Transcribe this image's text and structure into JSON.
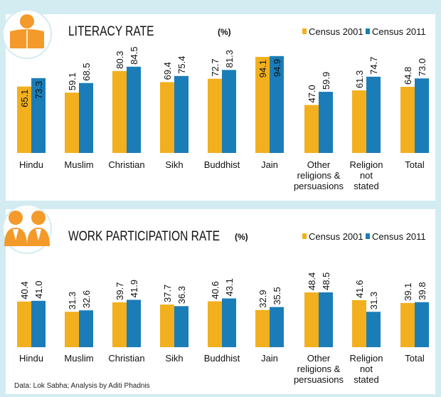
{
  "colors": {
    "census_2001": "#f2b01e",
    "census_2011": "#1b7db8",
    "icon": "#f39a2b",
    "background": "#d3ecf1"
  },
  "source": "Data: Lok Sabha; Analysis by Aditi Phadnis",
  "chart_data": [
    {
      "type": "bar",
      "title": "LITERACY RATE",
      "unit": "(%)",
      "icon": "reading-person-icon",
      "legend": [
        "Census 2001",
        "Census 2011"
      ],
      "legend_position": "top-right",
      "categories": [
        "Hindu",
        "Muslim",
        "Christian",
        "Sikh",
        "Buddhist",
        "Jain",
        "Other religions & persuasions",
        "Religion not stated",
        "Total"
      ],
      "series": [
        {
          "name": "Census 2001",
          "values": [
            65.1,
            59.1,
            80.3,
            69.4,
            72.7,
            94.1,
            47.0,
            61.3,
            64.8
          ],
          "labels": [
            "65.1",
            "59.1",
            "80.3",
            "69.4",
            "72.7",
            "94.1",
            "47.0",
            "61.3",
            "64.8"
          ]
        },
        {
          "name": "Census 2011",
          "values": [
            73.3,
            68.5,
            84.5,
            75.4,
            81.3,
            94.9,
            59.9,
            74.7,
            73.0
          ],
          "labels": [
            "73.3",
            "68.5",
            "84.5",
            "75.4",
            "81.3",
            "94.9",
            "59.9",
            "74.7",
            "73.0"
          ]
        }
      ],
      "grid": false
    },
    {
      "type": "bar",
      "title": "WORK PARTICIPATION RATE",
      "unit": "(%)",
      "icon": "business-people-icon",
      "legend": [
        "Census 2001",
        "Census 2011"
      ],
      "legend_position": "top-right",
      "categories": [
        "Hindu",
        "Muslim",
        "Christian",
        "Sikh",
        "Buddhist",
        "Jain",
        "Other religions & persuasions",
        "Religion not stated",
        "Total"
      ],
      "series": [
        {
          "name": "Census 2001",
          "values": [
            40.4,
            31.3,
            39.7,
            37.7,
            40.6,
            32.9,
            48.4,
            41.6,
            39.1
          ],
          "labels": [
            "40.4",
            "31.3",
            "39.7",
            "37.7",
            "40.6",
            "32.9",
            "48.4",
            "41.6",
            "39.1"
          ]
        },
        {
          "name": "Census 2011",
          "values": [
            41.0,
            32.6,
            41.9,
            36.3,
            43.1,
            35.5,
            48.5,
            31.3,
            39.8
          ],
          "labels": [
            "41.0",
            "32.6",
            "41.9",
            "36.3",
            "43.1",
            "35.5",
            "48.5",
            "31.3",
            "39.8"
          ]
        }
      ],
      "grid": false
    }
  ]
}
